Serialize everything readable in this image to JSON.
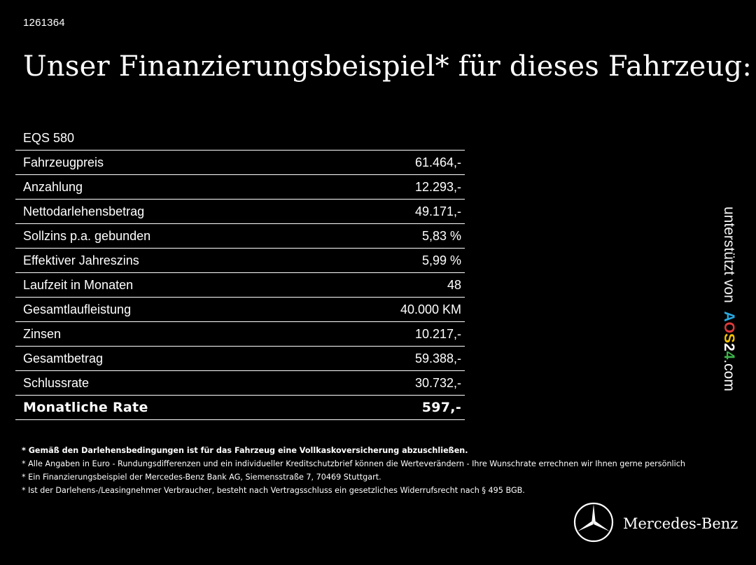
{
  "ref_id": "1261364",
  "headline": "Unser Finanzierungsbeispiel* für dieses Fahrzeug:",
  "finance": {
    "model": "EQS 580",
    "rows": [
      {
        "label": "Fahrzeugpreis",
        "value": "61.464,-"
      },
      {
        "label": "Anzahlung",
        "value": "12.293,-"
      },
      {
        "label": "Nettodarlehensbetrag",
        "value": "49.171,-"
      },
      {
        "label": "Sollzins p.a. gebunden",
        "value": "5,83 %"
      },
      {
        "label": "Effektiver Jahreszins",
        "value": "5,99 %"
      },
      {
        "label": "Laufzeit in Monaten",
        "value": "48"
      },
      {
        "label": "Gesamtlaufleistung",
        "value": "40.000 KM"
      },
      {
        "label": "Zinsen",
        "value": "10.217,-"
      },
      {
        "label": "Gesamtbetrag",
        "value": "59.388,-"
      },
      {
        "label": "Schlussrate",
        "value": "30.732,-"
      }
    ],
    "total": {
      "label": "Monatliche Rate",
      "value": "597,-"
    }
  },
  "sidebar": {
    "supported_by": "unterstützt von",
    "logo_letters": [
      "A",
      "O",
      "S",
      "2",
      "4"
    ],
    "logo_colors": [
      "#29a8e0",
      "#e03a3a",
      "#f2c200",
      "#ffffff",
      "#3cb34a"
    ],
    "domain": ".com"
  },
  "notes": [
    "* Gemäß den Darlehensbedingungen ist für das Fahrzeug eine Vollkaskoversicherung abzuschließen.",
    "* Alle Angaben in Euro - Rundungsdifferenzen und ein individueller Kreditschutzbrief können die Werteverändern - Ihre Wunschrate errechnen wir Ihnen gerne persönlich",
    "* Ein Finanzierungsbeispiel der Mercedes-Benz Bank AG, Siemensstraße 7, 70469 Stuttgart.",
    "* Ist der Darlehens-/Leasingnehmer Verbraucher, besteht nach Vertragsschluss ein gesetzliches Widerrufsrecht nach § 495 BGB."
  ],
  "brand": {
    "name": "Mercedes-Benz",
    "icon": "mercedes-star-icon"
  }
}
